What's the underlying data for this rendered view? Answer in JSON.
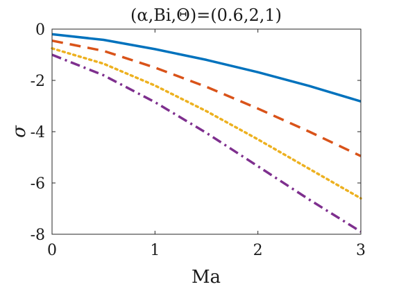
{
  "chart_data": {
    "type": "line",
    "title": "(α,Bi,Θ)=(0.6,2,1)",
    "xlabel": "Ma",
    "ylabel": "σ",
    "xlim": [
      0,
      3
    ],
    "ylim": [
      -8,
      0
    ],
    "xticks": [
      0,
      1,
      2,
      3
    ],
    "yticks": [
      0,
      -2,
      -4,
      -6,
      -8
    ],
    "grid": false,
    "series": [
      {
        "color": "#0072BD",
        "dash": "solid",
        "x": [
          0,
          0.5,
          1,
          1.5,
          2,
          2.5,
          3
        ],
        "y": [
          -0.2,
          -0.42,
          -0.78,
          -1.2,
          -1.68,
          -2.22,
          -2.82
        ]
      },
      {
        "color": "#D95319",
        "dash": "dashed",
        "x": [
          0,
          0.5,
          1,
          1.5,
          2,
          2.5,
          3
        ],
        "y": [
          -0.45,
          -0.85,
          -1.5,
          -2.25,
          -3.1,
          -4.0,
          -4.95
        ]
      },
      {
        "color": "#EDB120",
        "dash": "dotted",
        "x": [
          0,
          0.5,
          1,
          1.5,
          2,
          2.5,
          3
        ],
        "y": [
          -0.75,
          -1.35,
          -2.2,
          -3.2,
          -4.3,
          -5.45,
          -6.6
        ]
      },
      {
        "color": "#7E2F8E",
        "dash": "dashdot",
        "x": [
          0,
          0.5,
          1,
          1.5,
          2,
          2.5,
          3
        ],
        "y": [
          -1.0,
          -1.8,
          -2.85,
          -4.05,
          -5.35,
          -6.65,
          -7.9
        ]
      }
    ]
  }
}
